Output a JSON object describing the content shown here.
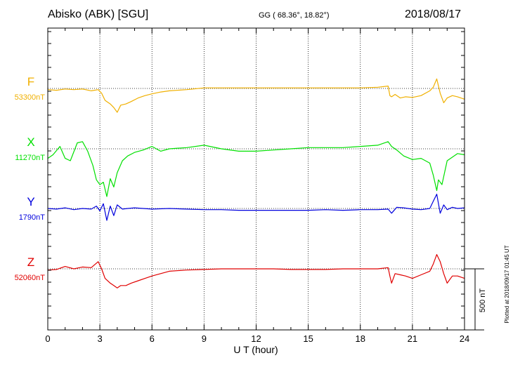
{
  "header": {
    "station": "Abisko (ABK)  [SGU]",
    "coords": "GG ( 68.36°,  18.82°)",
    "date": "2018/08/17"
  },
  "side_note": "Plotted at 2018/09/17 01:45 UT",
  "colors": {
    "F": "#f0b000",
    "X": "#00e000",
    "Y": "#0000dd",
    "Z": "#e00000",
    "axis": "#000000"
  },
  "chart_data": {
    "type": "line",
    "xlabel": "U T (hour)",
    "xlim": [
      0,
      24
    ],
    "xticks": [
      0,
      3,
      6,
      9,
      12,
      15,
      18,
      21,
      24
    ],
    "xtick_labels": [
      "0",
      "3",
      "6",
      "9",
      "12",
      "15",
      "18",
      "21",
      "24"
    ],
    "y_offset_unit": "nT",
    "scale_bar": {
      "label": "500 nT",
      "value": 500
    },
    "series": [
      {
        "name": "F",
        "baseline_label": "53300nT",
        "baseline": 53300,
        "color": "#f0b000",
        "x": [
          0,
          0.5,
          1,
          1.5,
          2,
          2.5,
          2.9,
          3.1,
          3.3,
          3.6,
          3.8,
          4.0,
          4.2,
          4.5,
          4.8,
          5.2,
          5.6,
          6.0,
          6.5,
          7,
          8,
          9,
          10,
          11,
          12,
          13,
          14,
          15,
          16,
          17,
          18,
          19,
          19.6,
          19.7,
          19.8,
          20.0,
          20.3,
          20.6,
          21,
          21.5,
          22.0,
          22.2,
          22.4,
          22.6,
          22.8,
          23.0,
          23.3,
          23.6,
          24
        ],
        "y": [
          -10,
          -15,
          -5,
          -10,
          -5,
          -20,
          -10,
          -40,
          -100,
          -130,
          -160,
          -200,
          -140,
          -130,
          -110,
          -80,
          -60,
          -45,
          -30,
          -20,
          -10,
          5,
          5,
          5,
          5,
          5,
          5,
          5,
          5,
          5,
          5,
          10,
          20,
          -60,
          -70,
          -50,
          -80,
          -70,
          -75,
          -60,
          -20,
          10,
          80,
          -40,
          -120,
          -80,
          -60,
          -70,
          -90
        ]
      },
      {
        "name": "X",
        "baseline_label": "11270nT",
        "baseline": 11270,
        "color": "#00e000",
        "x": [
          0,
          0.3,
          0.7,
          1.0,
          1.3,
          1.7,
          2.0,
          2.3,
          2.6,
          2.8,
          3.0,
          3.2,
          3.4,
          3.6,
          3.8,
          4.0,
          4.3,
          4.6,
          5.0,
          5.5,
          6.0,
          6.5,
          7,
          8,
          9,
          10,
          11,
          12,
          13,
          14,
          15,
          16,
          17,
          18,
          19,
          19.6,
          19.8,
          20.1,
          20.5,
          21,
          21.5,
          22.0,
          22.2,
          22.4,
          22.5,
          22.7,
          23.0,
          23.3,
          23.6,
          24
        ],
        "y": [
          -80,
          -50,
          20,
          -80,
          -100,
          50,
          60,
          -20,
          -140,
          -260,
          -300,
          -280,
          -400,
          -250,
          -320,
          -200,
          -100,
          -60,
          -30,
          -10,
          20,
          -20,
          0,
          10,
          30,
          0,
          -20,
          -20,
          -10,
          0,
          10,
          10,
          10,
          20,
          30,
          60,
          20,
          -10,
          -60,
          -90,
          -80,
          -120,
          -220,
          -350,
          -260,
          -300,
          -100,
          -70,
          -40,
          -50
        ]
      },
      {
        "name": "Y",
        "baseline_label": "1790nT",
        "baseline": 1790,
        "color": "#0000dd",
        "x": [
          0,
          0.5,
          1,
          1.5,
          2,
          2.5,
          2.8,
          3.0,
          3.2,
          3.4,
          3.6,
          3.8,
          4.0,
          4.3,
          4.6,
          5,
          5.5,
          6,
          7,
          8,
          9,
          10,
          11,
          12,
          13,
          14,
          15,
          16,
          17,
          18,
          19,
          19.6,
          19.8,
          20.1,
          20.5,
          21,
          21.5,
          22.0,
          22.2,
          22.4,
          22.6,
          22.8,
          23.0,
          23.3,
          23.6,
          24
        ],
        "y": [
          0,
          -5,
          5,
          -10,
          0,
          -5,
          20,
          -20,
          40,
          -100,
          20,
          -60,
          30,
          -5,
          0,
          5,
          0,
          -5,
          0,
          -5,
          -10,
          -10,
          -15,
          -15,
          -15,
          -15,
          -15,
          -10,
          -15,
          -10,
          -10,
          -5,
          -40,
          10,
          5,
          -5,
          -10,
          0,
          60,
          120,
          -40,
          30,
          -10,
          10,
          0,
          5
        ]
      },
      {
        "name": "Z",
        "baseline_label": "52060nT",
        "baseline": 52060,
        "color": "#e00000",
        "x": [
          0,
          0.5,
          1,
          1.5,
          2,
          2.5,
          2.9,
          3.1,
          3.3,
          3.6,
          3.8,
          4.0,
          4.2,
          4.5,
          4.8,
          5.2,
          5.6,
          6.0,
          6.5,
          7,
          8,
          9,
          10,
          11,
          12,
          13,
          14,
          15,
          16,
          17,
          18,
          19,
          19.6,
          19.7,
          19.8,
          20.0,
          20.3,
          20.6,
          21,
          21.5,
          22.0,
          22.2,
          22.4,
          22.6,
          22.8,
          23.0,
          23.3,
          23.6,
          24
        ],
        "y": [
          -10,
          -5,
          20,
          0,
          15,
          10,
          60,
          0,
          -80,
          -120,
          -140,
          -160,
          -140,
          -140,
          -120,
          -100,
          -80,
          -60,
          -40,
          -20,
          -10,
          -5,
          0,
          0,
          0,
          0,
          -5,
          -5,
          -5,
          0,
          0,
          0,
          10,
          -60,
          -120,
          -40,
          -50,
          -60,
          -80,
          -50,
          -20,
          40,
          120,
          60,
          -40,
          -120,
          -60,
          -60,
          -80
        ]
      }
    ]
  }
}
